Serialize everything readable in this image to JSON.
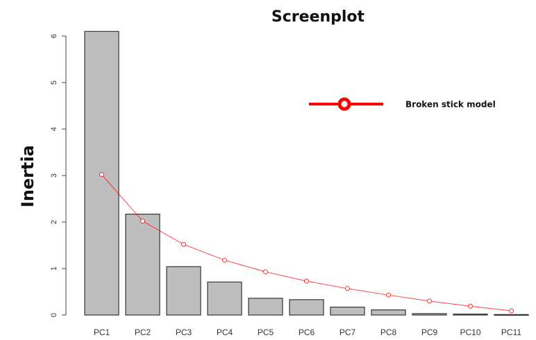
{
  "chart_data": {
    "type": "bar",
    "title": "Screenplot",
    "xlabel": "",
    "ylabel": "Inertia",
    "ylim": [
      0,
      6
    ],
    "yticks": [
      "0",
      "1",
      "2",
      "3",
      "4",
      "5",
      "6"
    ],
    "grid": false,
    "legend_position": "top-right",
    "categories": [
      "PC1",
      "PC2",
      "PC3",
      "PC4",
      "PC5",
      "PC6",
      "PC7",
      "PC8",
      "PC9",
      "PC10",
      "PC11"
    ],
    "series": [
      {
        "type": "bar",
        "values": [
          6.1,
          2.17,
          1.04,
          0.71,
          0.36,
          0.33,
          0.17,
          0.11,
          0.03,
          0.02,
          0.01
        ],
        "color": "#bebebe",
        "stroke": "#333333"
      },
      {
        "name": "Broken stick model",
        "type": "line",
        "values": [
          3.02,
          2.02,
          1.52,
          1.18,
          0.93,
          0.73,
          0.57,
          0.43,
          0.3,
          0.19,
          0.09
        ],
        "color": "#ff0000"
      }
    ]
  }
}
